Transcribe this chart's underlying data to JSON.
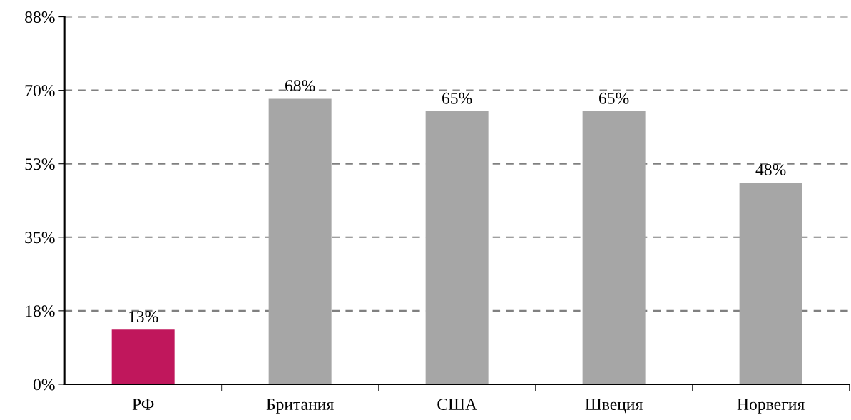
{
  "chart_data": {
    "type": "bar",
    "categories": [
      "РФ",
      "Британия",
      "США",
      "Швеция",
      "Норвегия"
    ],
    "values": [
      13,
      68,
      65,
      65,
      48
    ],
    "colors": [
      "#c0175c",
      "#a6a6a6",
      "#a6a6a6",
      "#a6a6a6",
      "#a6a6a6"
    ],
    "value_labels": [
      "13%",
      "68%",
      "65%",
      "65%",
      "48%"
    ],
    "ylim": [
      0,
      87.5
    ],
    "yticks": [
      {
        "value": 0,
        "label": "0%"
      },
      {
        "value": 17.5,
        "label": "18%"
      },
      {
        "value": 35,
        "label": "35%"
      },
      {
        "value": 52.5,
        "label": "53%"
      },
      {
        "value": 70,
        "label": "70%"
      },
      {
        "value": 87.5,
        "label": "88%"
      }
    ],
    "grid": "y",
    "line_style": "dashed"
  }
}
